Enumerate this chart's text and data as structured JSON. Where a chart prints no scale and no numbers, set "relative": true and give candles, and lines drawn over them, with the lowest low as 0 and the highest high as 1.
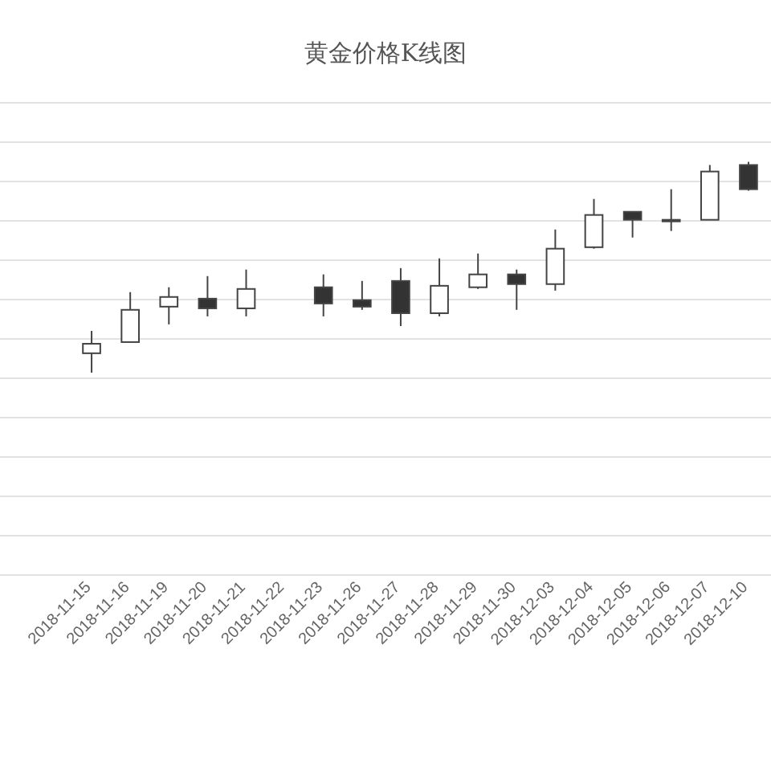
{
  "chart_data": {
    "type": "candlestick",
    "title": "黄金价格K线图",
    "categories": [
      "2018-11-15",
      "2018-11-16",
      "2018-11-19",
      "2018-11-20",
      "2018-11-21",
      "2018-11-22",
      "2018-11-23",
      "2018-11-26",
      "2018-11-27",
      "2018-11-28",
      "2018-11-29",
      "2018-11-30",
      "2018-12-03",
      "2018-12-04",
      "2018-12-05",
      "2018-12-06",
      "2018-12-07",
      "2018-12-10"
    ],
    "ohlc": [
      [
        0.092,
        0.198,
        0,
        0.137
      ],
      [
        0.145,
        0.382,
        0.145,
        0.298
      ],
      [
        0.313,
        0.405,
        0.229,
        0.359
      ],
      [
        0.351,
        0.458,
        0.267,
        0.305
      ],
      [
        0.305,
        0.489,
        0.267,
        0.397
      ],
      null,
      [
        0.405,
        0.466,
        0.267,
        0.328
      ],
      [
        0.344,
        0.435,
        0.298,
        0.313
      ],
      [
        0.435,
        0.496,
        0.221,
        0.282
      ],
      [
        0.282,
        0.542,
        0.267,
        0.412
      ],
      [
        0.405,
        0.565,
        0.397,
        0.466
      ],
      [
        0.466,
        0.489,
        0.298,
        0.42
      ],
      [
        0.42,
        0.679,
        0.389,
        0.588
      ],
      [
        0.595,
        0.824,
        0.588,
        0.748
      ],
      [
        0.763,
        0.763,
        0.641,
        0.725
      ],
      [
        0.725,
        0.87,
        0.672,
        0.72
      ],
      [
        0.725,
        0.985,
        0.725,
        0.954
      ],
      [
        0.985,
        1,
        0.863,
        0.87
      ]
    ],
    "relative": true,
    "grid": "y"
  }
}
